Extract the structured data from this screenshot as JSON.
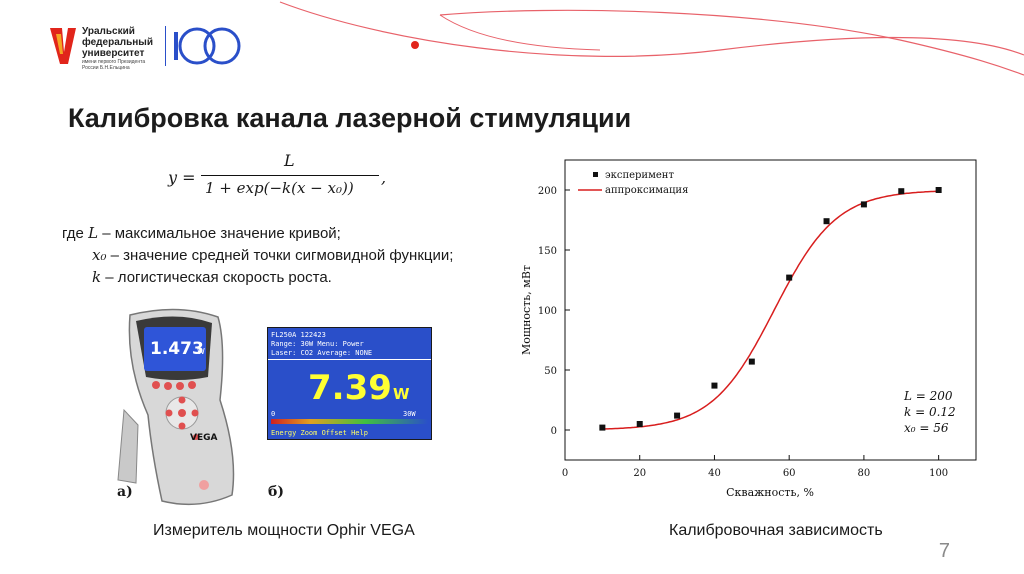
{
  "logo": {
    "lines": [
      "Уральский",
      "федеральный",
      "университет"
    ],
    "small_lines": [
      "имени первого Президента",
      "России Б.Н.Ельцина"
    ]
  },
  "title": "Калибровка канала лазерной стимуляции",
  "formula": {
    "lhs": "y =",
    "numerator": "L",
    "denominator": "1 + exp(−k(x − x₀))",
    "tail": ","
  },
  "description": {
    "line1_prefix": "где",
    "line1_var": "L",
    "line1_text": "– максимальное значение кривой;",
    "line2_var": "x₀",
    "line2_text": "– значение средней точки сигмовидной функции;",
    "line3_var": "k",
    "line3_text": "– логистическая скорость роста."
  },
  "device": {
    "display_value": "1.473",
    "display_unit": "W",
    "brand": "VEGA"
  },
  "screen": {
    "line1": "FL250A        122423",
    "line2": "Range: 30W    Menu: Power",
    "line3": "Laser: CO2    Average: NONE",
    "value": "7.39",
    "unit": "W",
    "scale_min": "0",
    "scale_max": "30W",
    "buttons": "Energy  Zoom   Offset  Help"
  },
  "subfig_labels": {
    "a": "а)",
    "b": "б)"
  },
  "captions": {
    "left": "Измеритель мощности Ophir VEGA",
    "right": "Калибровочная зависимость"
  },
  "page_number": "7",
  "colors": {
    "accent_red": "#e1251b",
    "curve": "#d81e1e",
    "screen_blue": "#2a4fc9",
    "screen_value": "#ffff33"
  },
  "chart_data": {
    "type": "scatter",
    "title": "",
    "xlabel": "Скважность, %",
    "ylabel": "Мощность, мВт",
    "xlim": [
      0,
      110
    ],
    "ylim": [
      -25,
      225
    ],
    "xticks": [
      0,
      20,
      40,
      60,
      80,
      100
    ],
    "yticks": [
      0,
      50,
      100,
      150,
      200
    ],
    "legend_position": "top-left",
    "series": [
      {
        "name": "эксперимент",
        "kind": "points",
        "x": [
          10,
          20,
          30,
          40,
          50,
          60,
          70,
          80,
          90,
          100
        ],
        "y": [
          2,
          5,
          12,
          37,
          57,
          127,
          174,
          188,
          199,
          200
        ]
      },
      {
        "name": "аппроксимация",
        "kind": "logistic-fit",
        "params": {
          "L": 200,
          "k": 0.12,
          "x0": 56
        }
      }
    ],
    "annotation": [
      "L = 200",
      "k = 0.12",
      "x₀ = 56"
    ]
  }
}
